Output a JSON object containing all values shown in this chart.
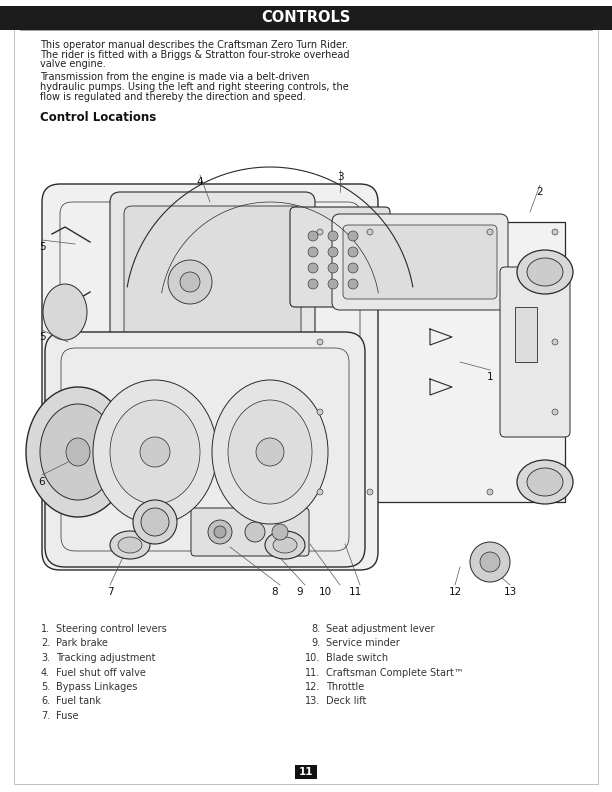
{
  "title": "CONTROLS",
  "title_bg": "#1c1c1c",
  "title_color": "#ffffff",
  "title_fontsize": 10.5,
  "page_bg": "#ffffff",
  "para1_line1": "This operator manual describes the Craftsman Zero Turn Rider.",
  "para1_line2": "The rider is fitted with a Briggs & Stratton four-stroke overhead",
  "para1_line3": "valve engine.",
  "para2_line1": "Transmission from the engine is made via a belt-driven",
  "para2_line2": "hydraulic pumps. Using the left and right steering controls, the",
  "para2_line3": "flow is regulated and thereby the direction and speed.",
  "section_title": "Control Locations",
  "body_fontsize": 7.0,
  "section_fontsize": 8.5,
  "left_items": [
    [
      "1.",
      "Steering control levers"
    ],
    [
      "2.",
      "Park brake"
    ],
    [
      "3.",
      "Tracking adjustment"
    ],
    [
      "4.",
      "Fuel shut off valve"
    ],
    [
      "5.",
      "Bypass Linkages"
    ],
    [
      "6.",
      "Fuel tank"
    ],
    [
      "7.",
      "Fuse"
    ]
  ],
  "right_items": [
    [
      "8.",
      "Seat adjustment lever"
    ],
    [
      "9.",
      "Service minder"
    ],
    [
      "10.",
      "Blade switch"
    ],
    [
      "11.",
      "Craftsman Complete Start™"
    ],
    [
      "12.",
      "Throttle"
    ],
    [
      "13.",
      "Deck lift"
    ]
  ],
  "page_number": "11",
  "lc": "#2a2a2a",
  "lc_light": "#888888",
  "fc_body": "#f0f0f0",
  "fc_deck": "#e8e8e8",
  "fc_wheel": "#d8d8d8",
  "fc_dark": "#c0c0c0"
}
